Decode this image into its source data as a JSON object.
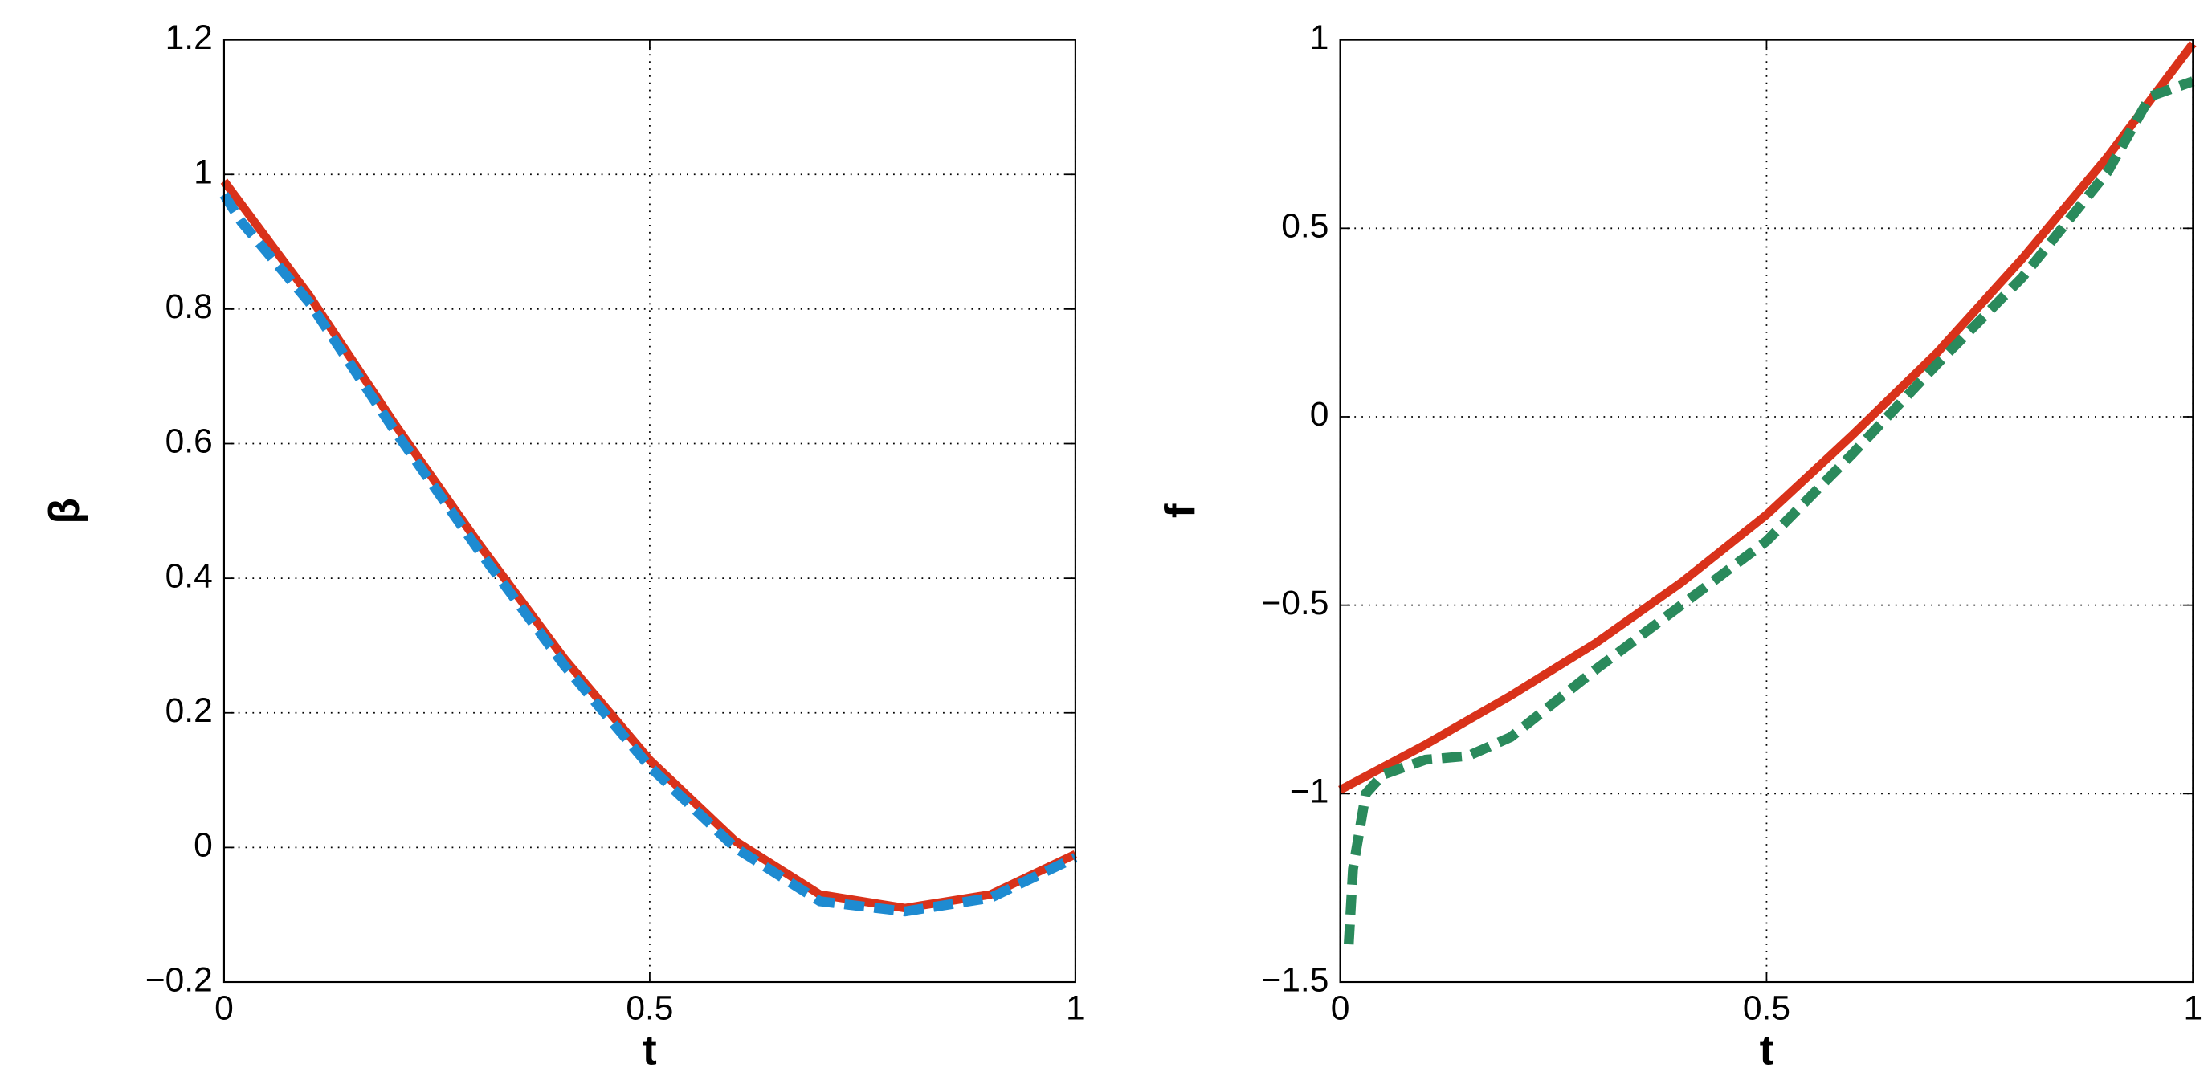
{
  "chart_data": [
    {
      "type": "line",
      "xlabel": "t",
      "ylabel": "β",
      "xlim": [
        0,
        1
      ],
      "xticks": [
        0,
        0.5,
        1
      ],
      "ylim": [
        -0.2,
        1.2
      ],
      "yticks": [
        {
          "value": -0.2,
          "label": "−0.2"
        },
        0,
        0.2,
        0.4,
        0.6,
        0.8,
        1,
        1.2
      ],
      "grid": true,
      "series": [
        {
          "color": "#d9321a",
          "dashed": false,
          "x": [
            0,
            0.1,
            0.2,
            0.3,
            0.4,
            0.5,
            0.6,
            0.7,
            0.8,
            0.9,
            1
          ],
          "values": [
            0.99,
            0.82,
            0.63,
            0.45,
            0.28,
            0.13,
            0.01,
            -0.07,
            -0.09,
            -0.07,
            -0.01
          ]
        },
        {
          "color": "#1e8bd1",
          "dashed": true,
          "x": [
            0,
            0.02,
            0.1,
            0.2,
            0.3,
            0.4,
            0.5,
            0.6,
            0.7,
            0.8,
            0.9,
            1
          ],
          "values": [
            0.97,
            0.93,
            0.81,
            0.62,
            0.44,
            0.27,
            0.12,
            0.0,
            -0.08,
            -0.095,
            -0.075,
            -0.015
          ]
        }
      ]
    },
    {
      "type": "line",
      "xlabel": "t",
      "ylabel": "f",
      "xlim": [
        0,
        1
      ],
      "xticks": [
        0,
        0.5,
        1
      ],
      "ylim": [
        -1.5,
        1
      ],
      "yticks": [
        {
          "value": -1.5,
          "label": "−1.5"
        },
        {
          "value": -1,
          "label": "−1"
        },
        {
          "value": -0.5,
          "label": "−0.5"
        },
        0,
        0.5,
        1
      ],
      "grid": true,
      "series": [
        {
          "color": "#d9321a",
          "dashed": false,
          "x": [
            0,
            0.1,
            0.2,
            0.3,
            0.4,
            0.5,
            0.6,
            0.7,
            0.8,
            0.9,
            1
          ],
          "values": [
            -0.99,
            -0.87,
            -0.74,
            -0.6,
            -0.44,
            -0.26,
            -0.05,
            0.17,
            0.42,
            0.69,
            0.99
          ]
        },
        {
          "color": "#2a8a5c",
          "dashed": true,
          "x": [
            0.01,
            0.015,
            0.03,
            0.05,
            0.1,
            0.15,
            0.2,
            0.3,
            0.4,
            0.5,
            0.6,
            0.7,
            0.8,
            0.9,
            0.95,
            1
          ],
          "values": [
            -1.4,
            -1.2,
            -1.0,
            -0.95,
            -0.91,
            -0.9,
            -0.85,
            -0.67,
            -0.5,
            -0.33,
            -0.1,
            0.14,
            0.37,
            0.65,
            0.85,
            0.89
          ]
        }
      ]
    }
  ]
}
